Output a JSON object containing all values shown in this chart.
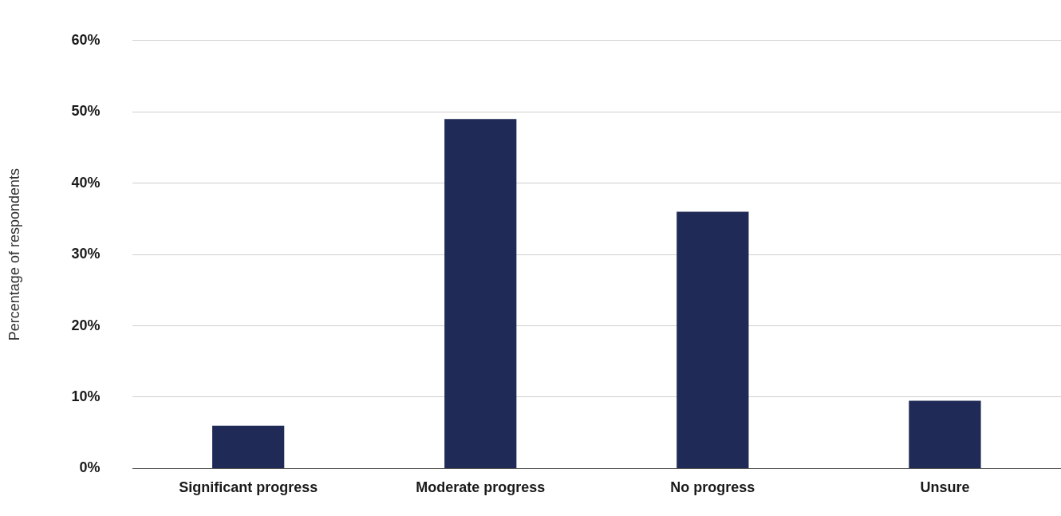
{
  "chart_data": {
    "type": "bar",
    "ylabel": "Percentage of respondents",
    "categories": [
      "Significant progress",
      "Moderate progress",
      "No progress",
      "Unsure"
    ],
    "values": [
      6,
      49,
      36,
      9.5
    ],
    "color": "#202a56",
    "ylim": [
      0,
      60
    ],
    "yticks": [
      {
        "value": 0,
        "label": "0%"
      },
      {
        "value": 10,
        "label": "10%"
      },
      {
        "value": 20,
        "label": "20%"
      },
      {
        "value": 30,
        "label": "30%"
      },
      {
        "value": 40,
        "label": "40%"
      },
      {
        "value": 50,
        "label": "50%"
      },
      {
        "value": 60,
        "label": "60%"
      }
    ],
    "grid": "y",
    "legend": false
  }
}
